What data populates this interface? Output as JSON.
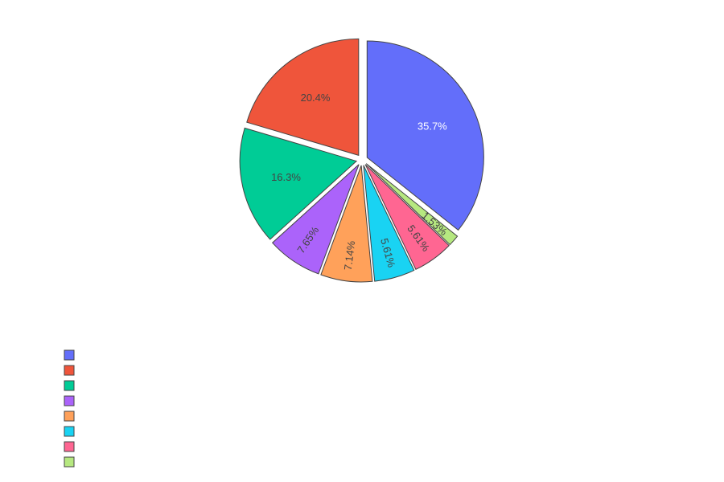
{
  "chart_data": {
    "type": "pie",
    "title": "",
    "slices": [
      {
        "label": "",
        "value": 35.7,
        "text": "35.7%",
        "color": "#636efa",
        "text_color": "#ffffff"
      },
      {
        "label": "",
        "value": 1.53,
        "text": "1.53%",
        "color": "#b6e880",
        "text_color": "#444444"
      },
      {
        "label": "",
        "value": 5.61,
        "text": "5.61%",
        "color": "#ff6692",
        "text_color": "#444444"
      },
      {
        "label": "",
        "value": 5.61,
        "text": "5.61%",
        "color": "#19d3f3",
        "text_color": "#444444"
      },
      {
        "label": "",
        "value": 7.14,
        "text": "7.14%",
        "color": "#ffa15a",
        "text_color": "#444444"
      },
      {
        "label": "",
        "value": 7.65,
        "text": "7.65%",
        "color": "#ab63fa",
        "text_color": "#444444"
      },
      {
        "label": "",
        "value": 16.3,
        "text": "16.3%",
        "color": "#00cc96",
        "text_color": "#444444"
      },
      {
        "label": "",
        "value": 20.4,
        "text": "20.4%",
        "color": "#ef553b",
        "text_color": "#444444"
      }
    ],
    "pulled_out": true,
    "legend": {
      "placement": "bottom-left",
      "entries": [
        {
          "label": "",
          "color": "#636efa"
        },
        {
          "label": "",
          "color": "#ef553b"
        },
        {
          "label": "",
          "color": "#00cc96"
        },
        {
          "label": "",
          "color": "#ab63fa"
        },
        {
          "label": "",
          "color": "#ffa15a"
        },
        {
          "label": "",
          "color": "#19d3f3"
        },
        {
          "label": "",
          "color": "#ff6692"
        },
        {
          "label": "",
          "color": "#b6e880"
        }
      ]
    }
  }
}
